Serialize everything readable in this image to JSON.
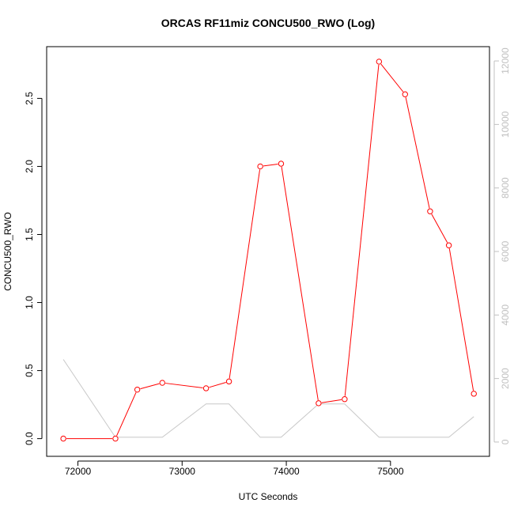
{
  "chart_data": {
    "type": "line",
    "title": "ORCAS RF11miz CONCU500_RWO (Log)",
    "xlabel": "UTC Seconds",
    "ylabel": "CONCU500_RWO",
    "xlim": [
      71700,
      75950
    ],
    "ylim": [
      -0.13,
      2.88
    ],
    "y2lim": [
      -450,
      12450
    ],
    "x_ticks": [
      72000,
      73000,
      74000,
      75000
    ],
    "y_ticks": [
      0.0,
      0.5,
      1.0,
      1.5,
      2.0,
      2.5
    ],
    "y2_ticks": [
      0,
      2000,
      4000,
      6000,
      8000,
      10000,
      12000
    ],
    "x_tick_labels": [
      "72000",
      "73000",
      "74000",
      "75000"
    ],
    "y_tick_labels": [
      "0.0",
      "0.5",
      "1.0",
      "1.5",
      "2.0",
      "2.5"
    ],
    "y2_tick_labels": [
      "0",
      "2000",
      "4000",
      "6000",
      "8000",
      "10000",
      "12000"
    ],
    "grid": false,
    "colors": {
      "primary_series": "#ff0000",
      "secondary_series": "#c8c8c8",
      "right_axis": "#c0c0c0"
    },
    "series": [
      {
        "axis": "left",
        "marker": "open-circle",
        "x": [
          71860,
          72360,
          72570,
          72810,
          73230,
          73450,
          73750,
          73950,
          74310,
          74560,
          74890,
          75140,
          75380,
          75560,
          75800
        ],
        "y": [
          0.0,
          0.0,
          0.36,
          0.41,
          0.37,
          0.42,
          2.0,
          2.02,
          0.26,
          0.29,
          2.77,
          2.53,
          1.67,
          1.42,
          0.33
        ]
      },
      {
        "axis": "right",
        "marker": "none",
        "x": [
          71860,
          72360,
          72570,
          72810,
          73230,
          73450,
          73750,
          73950,
          74310,
          74560,
          74890,
          75140,
          75380,
          75560,
          75800
        ],
        "y": [
          2600,
          150,
          150,
          150,
          1200,
          1200,
          150,
          150,
          1200,
          1200,
          150,
          150,
          150,
          150,
          800
        ]
      }
    ]
  }
}
